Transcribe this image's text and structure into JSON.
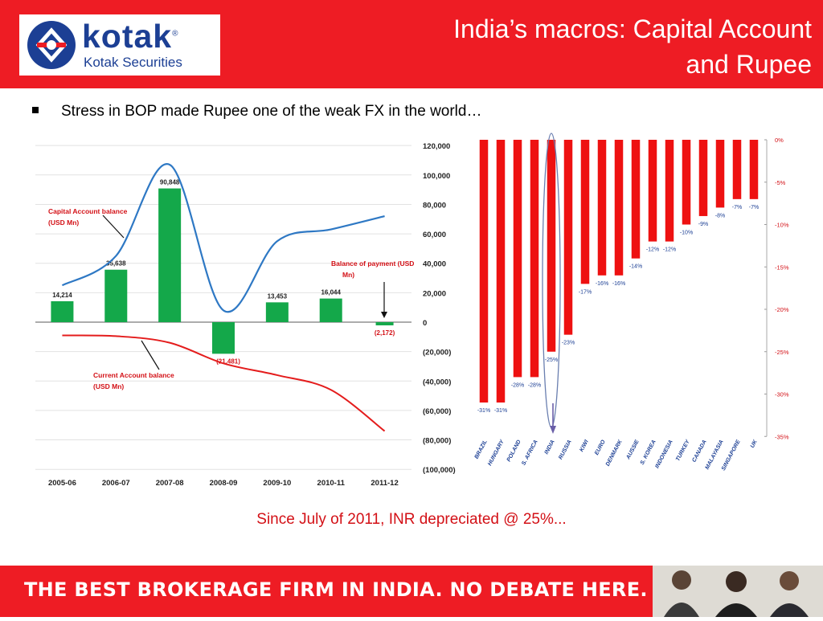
{
  "header": {
    "logo_word": "kotak",
    "logo_registered": "®",
    "logo_sub": "Kotak Securities",
    "title_line1": "India’s macros: Capital Account",
    "title_line2": "and Rupee"
  },
  "bullet": {
    "text": "Stress in BOP made Rupee one of the weak FX in the world…"
  },
  "caption": "Since July of 2011, INR depreciated @ 25%...",
  "footer": {
    "text": "THE BEST BROKERAGE FIRM IN INDIA. NO DEBATE HERE."
  },
  "colors": {
    "brand_red": "#ee1c24",
    "brand_blue": "#1c3f94",
    "bar_green": "#14a84a",
    "line_blue": "#2e78c4",
    "line_red": "#e41c1c",
    "bar_red": "#ee1111"
  },
  "chart_data": [
    {
      "type": "bar",
      "categories": [
        "2005-06",
        "2006-07",
        "2007-08",
        "2008-09",
        "2009-10",
        "2010-11",
        "2011-12"
      ],
      "series": [
        {
          "name": "Balance of payment (USD Mn)",
          "kind": "bar",
          "values": [
            14214,
            35638,
            90848,
            -21481,
            13453,
            16044,
            -2172
          ],
          "labels": [
            "14,214",
            "35,638",
            "90,848",
            "(21,481)",
            "13,453",
            "16,044",
            "(2,172)"
          ]
        },
        {
          "name": "Capital Account balance (USD Mn)",
          "kind": "line",
          "values": [
            25000,
            45000,
            107000,
            8000,
            55000,
            63000,
            72000
          ]
        },
        {
          "name": "Current Account balance (USD Mn)",
          "kind": "line",
          "values": [
            -9000,
            -9500,
            -14000,
            -28000,
            -36000,
            -46000,
            -74000
          ]
        }
      ],
      "yticks": [
        "120,000",
        "100,000",
        "80,000",
        "60,000",
        "40,000",
        "20,000",
        "0",
        "(20,000)",
        "(40,000)",
        "(60,000)",
        "(80,000)",
        "(100,000)"
      ],
      "ylim": [
        -100000,
        120000
      ],
      "annotations": {
        "capital": [
          "Capital Account balance",
          "(USD Mn)"
        ],
        "current": [
          "Current Account balance",
          "(USD Mn)"
        ],
        "bop": [
          "Balance of payment (USD",
          "Mn)"
        ]
      }
    },
    {
      "type": "bar",
      "categories": [
        "BRAZIL",
        "HUNGARY",
        "POLAND",
        "S. AFRICA",
        "INDIA",
        "RUSSIA",
        "KIWI",
        "EURO",
        "DENMARK",
        "AUSSIE",
        "S. KOREA",
        "INDONESIA",
        "TURKEY",
        "CANADA",
        "MALAYASIA",
        "SINGAPORE",
        "UK"
      ],
      "values": [
        -31,
        -31,
        -28,
        -28,
        -25,
        -23,
        -17,
        -16,
        -16,
        -14,
        -12,
        -12,
        -10,
        -9,
        -8,
        -7,
        -7
      ],
      "labels": [
        "-31%",
        "-31%",
        "-28%",
        "-28%",
        "-25%",
        "-23%",
        "-17%",
        "-16%",
        "-16%",
        "-14%",
        "-12%",
        "-12%",
        "-10%",
        "-9%",
        "-8%",
        "-7%",
        "-7%"
      ],
      "yticks": [
        "0%",
        "-5%",
        "-10%",
        "-15%",
        "-20%",
        "-25%",
        "-30%",
        "-35%"
      ],
      "ylim": [
        -35,
        0
      ],
      "highlight": "INDIA"
    }
  ]
}
